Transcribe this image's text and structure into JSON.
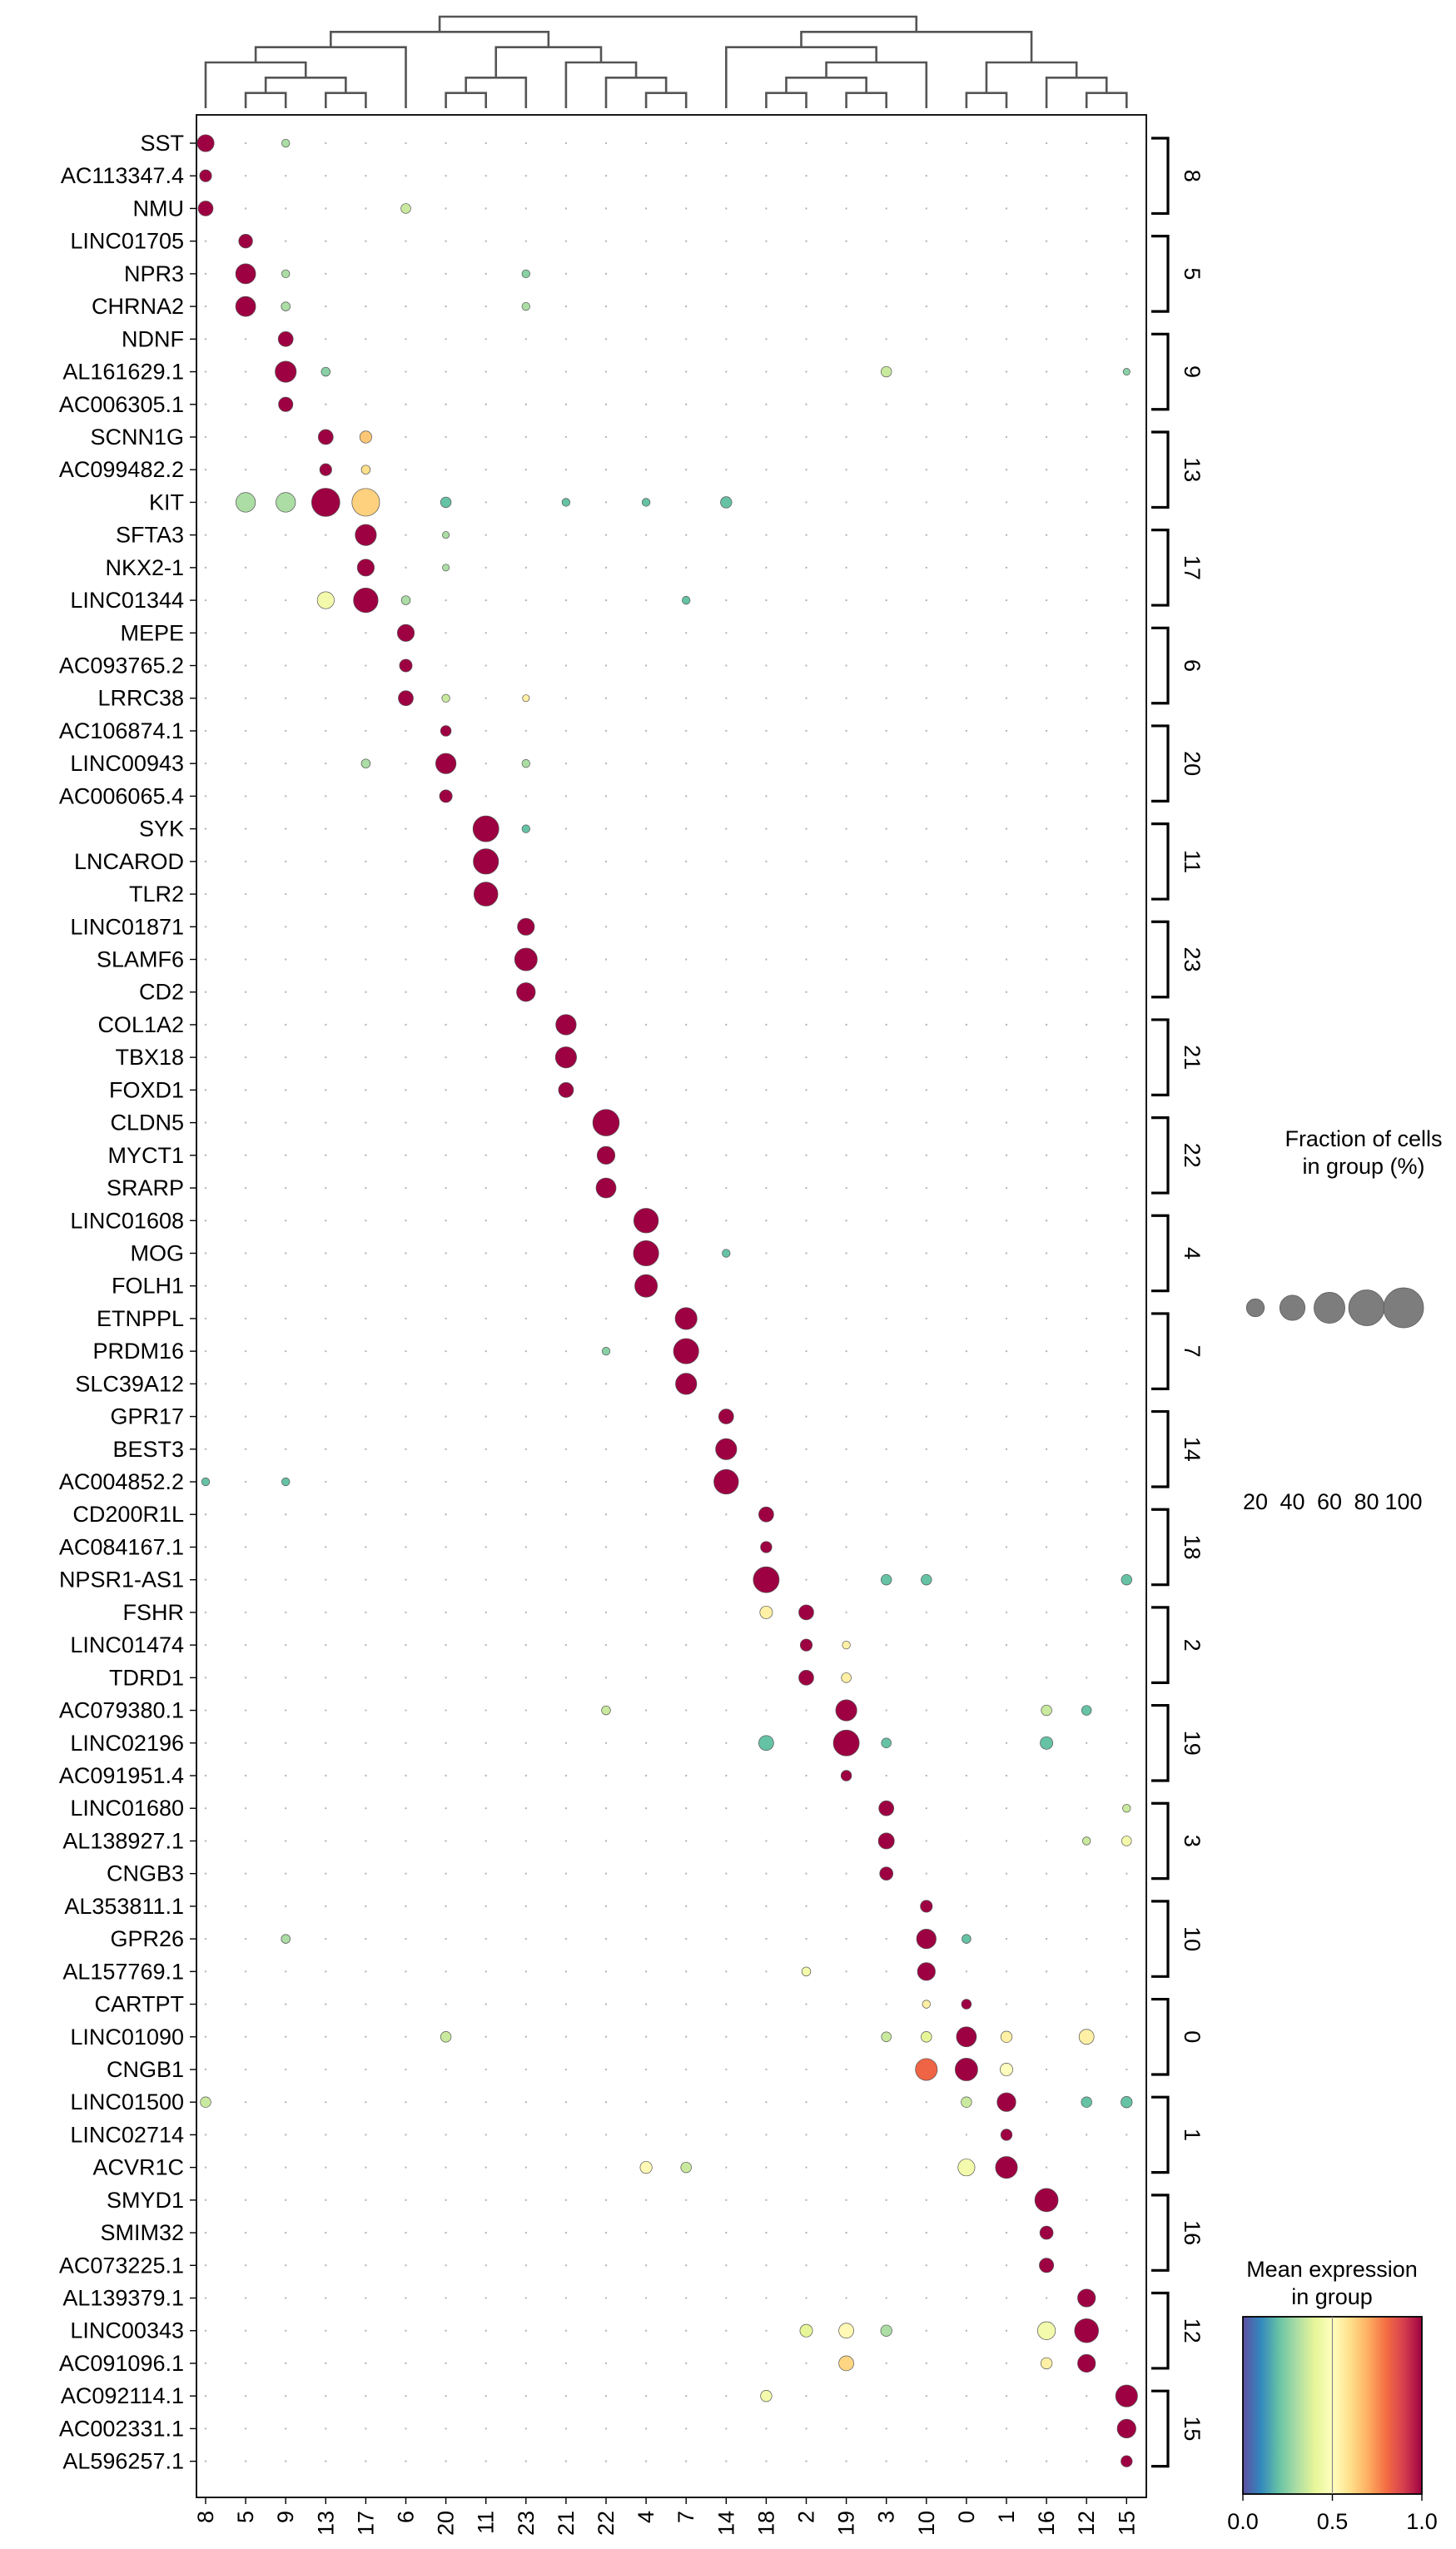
{
  "chart_data": {
    "type": "scatter",
    "subtype": "dotplot",
    "categories": [
      "8",
      "5",
      "9",
      "13",
      "17",
      "6",
      "20",
      "11",
      "23",
      "21",
      "22",
      "4",
      "7",
      "14",
      "18",
      "2",
      "19",
      "3",
      "10",
      "0",
      "1",
      "16",
      "12",
      "15"
    ],
    "genes": [
      "SST",
      "AC113347.4",
      "NMU",
      "LINC01705",
      "NPR3",
      "CHRNA2",
      "NDNF",
      "AL161629.1",
      "AC006305.1",
      "SCNN1G",
      "AC099482.2",
      "KIT",
      "SFTA3",
      "NKX2-1",
      "LINC01344",
      "MEPE",
      "AC093765.2",
      "LRRC38",
      "AC106874.1",
      "LINC00943",
      "AC006065.4",
      "SYK",
      "LNCAROD",
      "TLR2",
      "LINC01871",
      "SLAMF6",
      "CD2",
      "COL1A2",
      "TBX18",
      "FOXD1",
      "CLDN5",
      "MYCT1",
      "SRARP",
      "LINC01608",
      "MOG",
      "FOLH1",
      "ETNPPL",
      "PRDM16",
      "SLC39A12",
      "GPR17",
      "BEST3",
      "AC004852.2",
      "CD200R1L",
      "AC084167.1",
      "NPSR1-AS1",
      "FSHR",
      "LINC01474",
      "TDRD1",
      "AC079380.1",
      "LINC02196",
      "AC091951.4",
      "LINC01680",
      "AL138927.1",
      "CNGB3",
      "AL353811.1",
      "GPR26",
      "AL157769.1",
      "CARTPT",
      "LINC01090",
      "CNGB1",
      "LINC01500",
      "LINC02714",
      "ACVR1C",
      "SMYD1",
      "SMIM32",
      "AC073225.1",
      "AL139379.1",
      "LINC00343",
      "AC091096.1",
      "AC092114.1",
      "AC002331.1",
      "AL596257.1"
    ],
    "gene_groups": [
      {
        "label": "8",
        "start": 0,
        "end": 2
      },
      {
        "label": "5",
        "start": 3,
        "end": 5
      },
      {
        "label": "9",
        "start": 6,
        "end": 8
      },
      {
        "label": "13",
        "start": 9,
        "end": 11
      },
      {
        "label": "17",
        "start": 12,
        "end": 14
      },
      {
        "label": "6",
        "start": 15,
        "end": 17
      },
      {
        "label": "20",
        "start": 18,
        "end": 20
      },
      {
        "label": "11",
        "start": 21,
        "end": 23
      },
      {
        "label": "23",
        "start": 24,
        "end": 26
      },
      {
        "label": "21",
        "start": 27,
        "end": 29
      },
      {
        "label": "22",
        "start": 30,
        "end": 32
      },
      {
        "label": "4",
        "start": 33,
        "end": 35
      },
      {
        "label": "7",
        "start": 36,
        "end": 38
      },
      {
        "label": "14",
        "start": 39,
        "end": 41
      },
      {
        "label": "18",
        "start": 42,
        "end": 44
      },
      {
        "label": "2",
        "start": 45,
        "end": 47
      },
      {
        "label": "19",
        "start": 48,
        "end": 50
      },
      {
        "label": "3",
        "start": 51,
        "end": 53
      },
      {
        "label": "10",
        "start": 54,
        "end": 56
      },
      {
        "label": "0",
        "start": 57,
        "end": 59
      },
      {
        "label": "1",
        "start": 60,
        "end": 62
      },
      {
        "label": "16",
        "start": 63,
        "end": 65
      },
      {
        "label": "12",
        "start": 66,
        "end": 68
      },
      {
        "label": "15",
        "start": 69,
        "end": 71
      }
    ],
    "dendrogram_order": [
      "8",
      "5",
      "9",
      "13",
      "17",
      "6",
      "20",
      "11",
      "23",
      "21",
      "22",
      "4",
      "7",
      "14",
      "18",
      "2",
      "19",
      "3",
      "10",
      "0",
      "1",
      "16",
      "12",
      "15"
    ],
    "size_legend": {
      "title_line1": "Fraction of cells",
      "title_line2": "in group (%)",
      "values": [
        20,
        40,
        60,
        80,
        100
      ],
      "labels": [
        "20",
        "40",
        "60",
        "80",
        "100"
      ]
    },
    "color_legend": {
      "title_line1": "Mean expression",
      "title_line2": "in group",
      "ticks": [
        "0.0",
        "0.5",
        "1.0"
      ],
      "range": [
        0,
        1
      ],
      "colormap": "Spectral_r",
      "stops": [
        "#5e4fa2",
        "#3288bd",
        "#66c2a5",
        "#abdda4",
        "#e6f598",
        "#ffffbf",
        "#fee08b",
        "#fdae61",
        "#f46d43",
        "#d53e4f",
        "#9e0142"
      ]
    },
    "dots": [
      [
        0,
        0,
        18,
        1.0
      ],
      [
        0,
        2,
        4,
        0.3
      ],
      [
        1,
        0,
        9,
        1.0
      ],
      [
        2,
        0,
        14,
        1.0
      ],
      [
        2,
        5,
        6,
        0.35
      ],
      [
        3,
        1,
        12,
        1.0
      ],
      [
        4,
        1,
        25,
        1.0
      ],
      [
        4,
        2,
        4,
        0.3
      ],
      [
        4,
        8,
        4,
        0.25
      ],
      [
        5,
        1,
        25,
        1.0
      ],
      [
        5,
        2,
        5,
        0.3
      ],
      [
        5,
        8,
        4,
        0.3
      ],
      [
        6,
        2,
        14,
        1.0
      ],
      [
        7,
        2,
        28,
        1.0
      ],
      [
        7,
        3,
        5,
        0.25
      ],
      [
        7,
        17,
        7,
        0.35
      ],
      [
        7,
        23,
        3,
        0.25
      ],
      [
        8,
        2,
        13,
        1.0
      ],
      [
        9,
        3,
        14,
        1.0
      ],
      [
        9,
        4,
        9,
        0.65
      ],
      [
        10,
        3,
        9,
        1.0
      ],
      [
        10,
        4,
        5,
        0.6
      ],
      [
        11,
        1,
        24,
        0.3
      ],
      [
        11,
        2,
        24,
        0.3
      ],
      [
        11,
        3,
        50,
        1.0
      ],
      [
        11,
        4,
        48,
        0.63
      ],
      [
        11,
        6,
        7,
        0.2
      ],
      [
        11,
        9,
        4,
        0.2
      ],
      [
        11,
        11,
        4,
        0.2
      ],
      [
        11,
        13,
        8,
        0.2
      ],
      [
        12,
        4,
        28,
        1.0
      ],
      [
        12,
        6,
        3,
        0.3
      ],
      [
        13,
        4,
        18,
        1.0
      ],
      [
        13,
        6,
        3,
        0.3
      ],
      [
        14,
        3,
        18,
        0.45
      ],
      [
        14,
        4,
        38,
        1.0
      ],
      [
        14,
        5,
        5,
        0.3
      ],
      [
        14,
        12,
        4,
        0.2
      ],
      [
        15,
        5,
        18,
        1.0
      ],
      [
        16,
        5,
        10,
        1.0
      ],
      [
        17,
        5,
        14,
        1.0
      ],
      [
        17,
        6,
        4,
        0.35
      ],
      [
        17,
        8,
        3,
        0.55
      ],
      [
        18,
        6,
        7,
        1.0
      ],
      [
        19,
        6,
        26,
        1.0
      ],
      [
        19,
        4,
        5,
        0.3
      ],
      [
        19,
        8,
        4,
        0.3
      ],
      [
        20,
        6,
        10,
        1.0
      ],
      [
        21,
        7,
        42,
        1.0
      ],
      [
        21,
        8,
        4,
        0.2
      ],
      [
        22,
        7,
        40,
        1.0
      ],
      [
        23,
        7,
        36,
        1.0
      ],
      [
        24,
        8,
        18,
        1.0
      ],
      [
        25,
        8,
        32,
        1.0
      ],
      [
        26,
        8,
        22,
        1.0
      ],
      [
        27,
        9,
        26,
        1.0
      ],
      [
        28,
        9,
        28,
        1.0
      ],
      [
        29,
        9,
        14,
        1.0
      ],
      [
        30,
        10,
        44,
        1.0
      ],
      [
        31,
        10,
        20,
        1.0
      ],
      [
        32,
        10,
        25,
        1.0
      ],
      [
        33,
        11,
        38,
        1.0
      ],
      [
        34,
        11,
        40,
        1.0
      ],
      [
        34,
        13,
        4,
        0.2
      ],
      [
        35,
        11,
        32,
        1.0
      ],
      [
        36,
        12,
        30,
        1.0
      ],
      [
        37,
        12,
        40,
        1.0
      ],
      [
        37,
        10,
        4,
        0.25
      ],
      [
        38,
        12,
        28,
        1.0
      ],
      [
        39,
        13,
        14,
        1.0
      ],
      [
        40,
        13,
        28,
        1.0
      ],
      [
        41,
        13,
        38,
        1.0
      ],
      [
        41,
        0,
        4,
        0.2
      ],
      [
        41,
        2,
        4,
        0.2
      ],
      [
        42,
        14,
        14,
        1.0
      ],
      [
        43,
        14,
        8,
        1.0
      ],
      [
        44,
        14,
        42,
        1.0
      ],
      [
        44,
        17,
        7,
        0.2
      ],
      [
        44,
        18,
        7,
        0.2
      ],
      [
        44,
        23,
        7,
        0.2
      ],
      [
        45,
        14,
        10,
        0.55
      ],
      [
        45,
        15,
        14,
        1.0
      ],
      [
        46,
        15,
        9,
        1.0
      ],
      [
        46,
        16,
        4,
        0.55
      ],
      [
        47,
        15,
        14,
        1.0
      ],
      [
        47,
        16,
        6,
        0.55
      ],
      [
        48,
        16,
        28,
        1.0
      ],
      [
        48,
        10,
        5,
        0.35
      ],
      [
        48,
        21,
        7,
        0.35
      ],
      [
        48,
        22,
        6,
        0.2
      ],
      [
        49,
        14,
        14,
        0.2
      ],
      [
        49,
        16,
        42,
        1.0
      ],
      [
        49,
        21,
        10,
        0.2
      ],
      [
        49,
        17,
        6,
        0.2
      ],
      [
        50,
        16,
        7,
        1.0
      ],
      [
        51,
        17,
        14,
        1.0
      ],
      [
        51,
        23,
        4,
        0.35
      ],
      [
        52,
        17,
        16,
        1.0
      ],
      [
        52,
        23,
        6,
        0.45
      ],
      [
        52,
        22,
        4,
        0.35
      ],
      [
        53,
        17,
        11,
        1.0
      ],
      [
        54,
        18,
        9,
        1.0
      ],
      [
        55,
        18,
        24,
        1.0
      ],
      [
        55,
        2,
        5,
        0.3
      ],
      [
        55,
        19,
        5,
        0.2
      ],
      [
        56,
        18,
        20,
        1.0
      ],
      [
        56,
        15,
        5,
        0.45
      ],
      [
        57,
        19,
        6,
        1.0
      ],
      [
        57,
        18,
        4,
        0.55
      ],
      [
        58,
        19,
        25,
        1.0
      ],
      [
        58,
        18,
        7,
        0.4
      ],
      [
        58,
        20,
        8,
        0.55
      ],
      [
        58,
        22,
        14,
        0.55
      ],
      [
        58,
        17,
        6,
        0.35
      ],
      [
        58,
        6,
        7,
        0.35
      ],
      [
        59,
        18,
        30,
        0.82
      ],
      [
        59,
        19,
        32,
        1.0
      ],
      [
        59,
        20,
        10,
        0.5
      ],
      [
        60,
        20,
        22,
        1.0
      ],
      [
        60,
        0,
        7,
        0.35
      ],
      [
        60,
        19,
        7,
        0.35
      ],
      [
        60,
        22,
        7,
        0.2
      ],
      [
        60,
        23,
        8,
        0.2
      ],
      [
        61,
        20,
        8,
        1.0
      ],
      [
        62,
        20,
        30,
        1.0
      ],
      [
        62,
        19,
        18,
        0.45
      ],
      [
        62,
        11,
        9,
        0.52
      ],
      [
        62,
        12,
        7,
        0.35
      ],
      [
        63,
        21,
        34,
        1.0
      ],
      [
        64,
        21,
        11,
        1.0
      ],
      [
        65,
        21,
        13,
        1.0
      ],
      [
        66,
        22,
        20,
        1.0
      ],
      [
        67,
        22,
        36,
        1.0
      ],
      [
        67,
        21,
        20,
        0.45
      ],
      [
        67,
        16,
        14,
        0.52
      ],
      [
        67,
        15,
        10,
        0.4
      ],
      [
        67,
        17,
        8,
        0.3
      ],
      [
        68,
        22,
        20,
        1.0
      ],
      [
        68,
        16,
        14,
        0.62
      ],
      [
        68,
        21,
        8,
        0.55
      ],
      [
        69,
        23,
        30,
        1.0
      ],
      [
        69,
        14,
        8,
        0.45
      ],
      [
        70,
        23,
        22,
        1.0
      ],
      [
        71,
        23,
        8,
        1.0
      ]
    ]
  }
}
